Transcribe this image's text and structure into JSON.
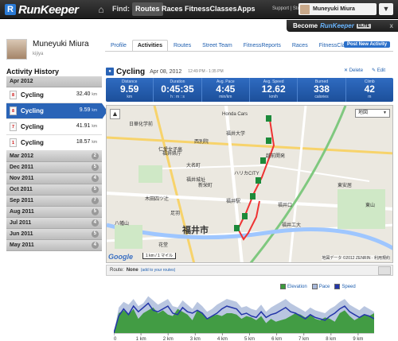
{
  "topbar": {
    "logo": "RunKeeper",
    "find_label": "Find:",
    "nav": [
      "Routes",
      "Races",
      "FitnessClasses",
      "Apps"
    ],
    "support": "Support | Store",
    "user_name": "Muneyuki Miura"
  },
  "elite_banner": {
    "prefix": "Become",
    "brand": "RunKeeper",
    "tag": "ELITE",
    "close": "x"
  },
  "profile": {
    "name": "Muneyuki Miura",
    "username": "kijiya",
    "tabs": [
      "Profile",
      "Activities",
      "Routes",
      "Street Team",
      "FitnessReports",
      "Races",
      "FitnessClasses"
    ],
    "active_tab": "Activities",
    "new_activity": "Post New Activity"
  },
  "history": {
    "title": "Activity History",
    "open_month": "Apr 2012",
    "activities": [
      {
        "name": "Cycling",
        "dist": "32.40",
        "unit": "km",
        "selected": false
      },
      {
        "name": "Cycling",
        "dist": "9.59",
        "unit": "km",
        "selected": true
      },
      {
        "name": "Cycling",
        "dist": "41.91",
        "unit": "km",
        "selected": false
      },
      {
        "name": "Cycling",
        "dist": "18.57",
        "unit": "km",
        "selected": false
      }
    ],
    "months": [
      {
        "label": "Mar 2012",
        "count": "2"
      },
      {
        "label": "Dec 2011",
        "count": "5"
      },
      {
        "label": "Nov 2011",
        "count": "4"
      },
      {
        "label": "Oct 2011",
        "count": "5"
      },
      {
        "label": "Sep 2011",
        "count": "7"
      },
      {
        "label": "Aug 2011",
        "count": "5"
      },
      {
        "label": "Jul 2011",
        "count": "4"
      },
      {
        "label": "Jun 2011",
        "count": "5"
      },
      {
        "label": "May 2011",
        "count": "4"
      }
    ]
  },
  "activity": {
    "title": "Cycling",
    "date": "Apr 08, 2012",
    "time": "12:49 PM - 1:35 PM",
    "delete": "Delete",
    "edit": "Edit"
  },
  "stats": [
    {
      "label": "Distance",
      "value": "9.59",
      "unit": "km"
    },
    {
      "label": "Duration",
      "value": "0:45:35",
      "unit": "h : m : s"
    },
    {
      "label": "Avg. Pace",
      "value": "4:45",
      "unit": "min/km"
    },
    {
      "label": "Avg. Speed",
      "value": "12.62",
      "unit": "km/h"
    },
    {
      "label": "Burned",
      "value": "338",
      "unit": "calories"
    },
    {
      "label": "Climb",
      "value": "42",
      "unit": "m"
    }
  ],
  "map": {
    "type_select": "地図",
    "city_label": "福井市",
    "labels": [
      "日華化学前",
      "福井県庁",
      "福井駅",
      "大名町",
      "福井城址",
      "仁愛女子高",
      "西別院",
      "新栄町",
      "木田四ツ辻",
      "八幡山",
      "花堂",
      "足羽",
      "東安居",
      "ハリカCITY",
      "Honda Cars",
      "越前開発",
      "福井口",
      "福井工大",
      "福井大学",
      "東山"
    ],
    "scale": "1 km / 1 マイル",
    "copyright": "地図データ ©2012 ZENRIN · 利用規約",
    "google": "Google"
  },
  "route": {
    "label": "Route:",
    "value": "None",
    "add": "(add to your routes)"
  },
  "chart_data": {
    "type": "area",
    "series": [
      {
        "name": "Elevation",
        "color": "#3b9a3b",
        "values": [
          1,
          14,
          16,
          13,
          17,
          10,
          14,
          16,
          18,
          14,
          16,
          13,
          12,
          17,
          15,
          13,
          9,
          16,
          14,
          10,
          12,
          13,
          12,
          14,
          14,
          13,
          10,
          12,
          11,
          9,
          12,
          7,
          10,
          8,
          9,
          10,
          12,
          14,
          13,
          11,
          13,
          10,
          9,
          11,
          10,
          8,
          14,
          16,
          12,
          9,
          11,
          13,
          12,
          14
        ]
      },
      {
        "name": "Pace",
        "color": "#a8b8d8",
        "values": [
          0,
          18,
          22,
          20,
          24,
          19,
          21,
          26,
          23,
          20,
          22,
          24,
          19,
          18,
          23,
          20,
          17,
          22,
          19,
          15,
          17,
          20,
          22,
          24,
          23,
          22,
          18,
          19,
          17,
          16,
          20,
          15,
          18,
          20,
          22,
          24,
          21,
          19,
          17,
          15,
          18,
          16,
          15,
          14,
          17,
          19,
          22,
          24,
          20,
          18,
          16,
          19,
          17,
          15
        ]
      },
      {
        "name": "Speed",
        "color": "#2436a8",
        "values": [
          0,
          12,
          17,
          13,
          19,
          15,
          18,
          21,
          16,
          15,
          17,
          19,
          14,
          13,
          18,
          15,
          14,
          16,
          14,
          10,
          12,
          14,
          17,
          19,
          18,
          17,
          13,
          14,
          12,
          11,
          15,
          11,
          13,
          14,
          16,
          18,
          15,
          14,
          12,
          10,
          13,
          11,
          10,
          9,
          12,
          14,
          17,
          19,
          15,
          13,
          11,
          13,
          12,
          10
        ]
      }
    ],
    "x_ticks": [
      "0",
      "1 km",
      "2 km",
      "3 km",
      "4 km",
      "5 km",
      "6 km",
      "7 km",
      "8 km",
      "9 km"
    ],
    "x_range": [
      0,
      9.59
    ],
    "legend": [
      "Elevation",
      "Pace",
      "Speed"
    ]
  }
}
